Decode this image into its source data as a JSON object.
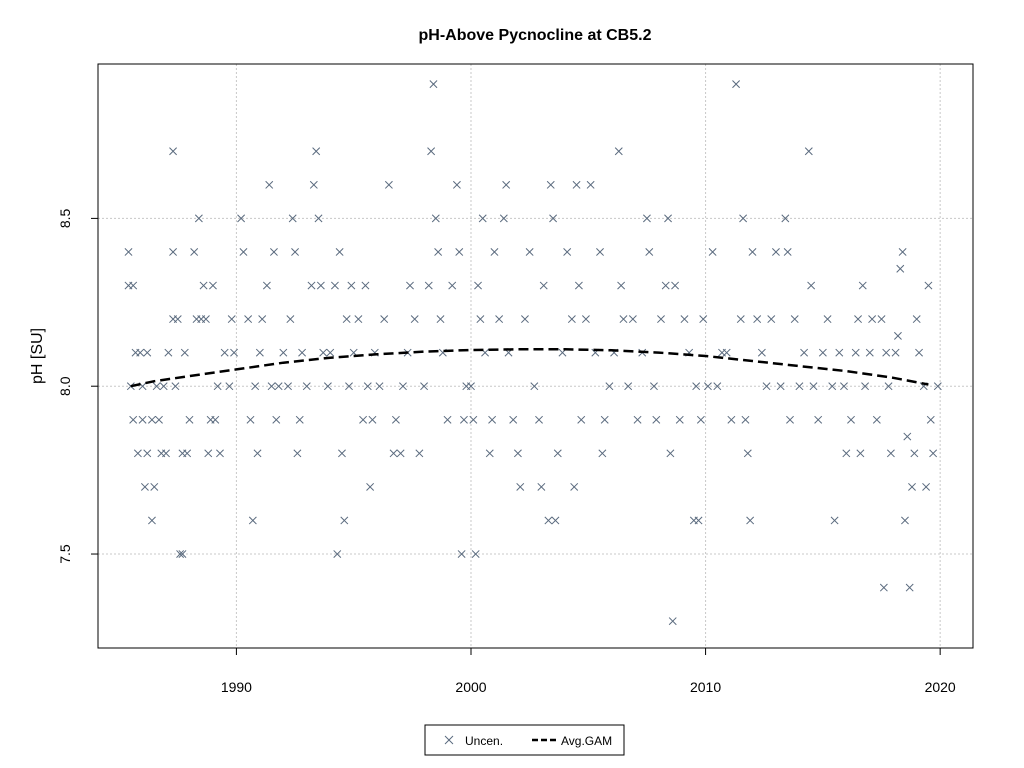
{
  "chart_data": {
    "type": "scatter",
    "title": "pH-Above Pycnocline at CB5.2",
    "xlabel": "",
    "ylabel": "pH [SU]",
    "xlim": [
      1984.1,
      2021.4
    ],
    "ylim": [
      7.22,
      8.96
    ],
    "x_ticks": [
      1990,
      2000,
      2010,
      2020
    ],
    "y_ticks": [
      7.5,
      8.0,
      8.5
    ],
    "x_tick_labels": [
      "1990",
      "2000",
      "2010",
      "2020"
    ],
    "y_tick_labels": [
      "7.5",
      "8.0",
      "8.5"
    ],
    "grid": true,
    "legend": {
      "position": "bottom",
      "entries": [
        "Uncen.",
        "Avg.GAM"
      ]
    },
    "colors": {
      "points": "#5a6a7e",
      "line": "#000000",
      "grid": "#c8c8c8"
    },
    "series": [
      {
        "name": "Uncen.",
        "marker": "x",
        "points": [
          [
            1985.4,
            8.4
          ],
          [
            1985.4,
            8.3
          ],
          [
            1985.6,
            8.3
          ],
          [
            1985.5,
            8.0
          ],
          [
            1985.6,
            7.9
          ],
          [
            1985.7,
            8.1
          ],
          [
            1985.8,
            7.8
          ],
          [
            1985.9,
            8.1
          ],
          [
            1986.0,
            8.0
          ],
          [
            1986.0,
            7.9
          ],
          [
            1986.1,
            7.7
          ],
          [
            1986.2,
            7.8
          ],
          [
            1986.2,
            8.1
          ],
          [
            1986.4,
            7.6
          ],
          [
            1986.4,
            7.9
          ],
          [
            1986.5,
            7.7
          ],
          [
            1986.6,
            8.0
          ],
          [
            1986.7,
            7.9
          ],
          [
            1986.8,
            7.8
          ],
          [
            1986.9,
            8.0
          ],
          [
            1987.0,
            7.8
          ],
          [
            1987.1,
            8.1
          ],
          [
            1987.3,
            8.7
          ],
          [
            1987.3,
            8.4
          ],
          [
            1987.3,
            8.2
          ],
          [
            1987.4,
            8.0
          ],
          [
            1987.5,
            8.2
          ],
          [
            1987.6,
            7.5
          ],
          [
            1987.7,
            7.5
          ],
          [
            1987.7,
            7.8
          ],
          [
            1987.8,
            8.1
          ],
          [
            1987.9,
            7.8
          ],
          [
            1988.0,
            7.9
          ],
          [
            1988.2,
            8.4
          ],
          [
            1988.3,
            8.2
          ],
          [
            1988.4,
            8.5
          ],
          [
            1988.5,
            8.2
          ],
          [
            1988.6,
            8.3
          ],
          [
            1988.7,
            8.2
          ],
          [
            1988.8,
            7.8
          ],
          [
            1988.9,
            7.9
          ],
          [
            1989.0,
            8.3
          ],
          [
            1989.1,
            7.9
          ],
          [
            1989.2,
            8.0
          ],
          [
            1989.3,
            7.8
          ],
          [
            1989.5,
            8.1
          ],
          [
            1989.7,
            8.0
          ],
          [
            1989.8,
            8.2
          ],
          [
            1989.9,
            8.1
          ],
          [
            1990.2,
            8.5
          ],
          [
            1990.3,
            8.4
          ],
          [
            1990.5,
            8.2
          ],
          [
            1990.6,
            7.9
          ],
          [
            1990.7,
            7.6
          ],
          [
            1990.8,
            8.0
          ],
          [
            1990.9,
            7.8
          ],
          [
            1991.0,
            8.1
          ],
          [
            1991.1,
            8.2
          ],
          [
            1991.3,
            8.3
          ],
          [
            1991.4,
            8.6
          ],
          [
            1991.5,
            8.0
          ],
          [
            1991.6,
            8.4
          ],
          [
            1991.7,
            7.9
          ],
          [
            1991.8,
            8.0
          ],
          [
            1992.0,
            8.1
          ],
          [
            1992.2,
            8.0
          ],
          [
            1992.3,
            8.2
          ],
          [
            1992.4,
            8.5
          ],
          [
            1992.5,
            8.4
          ],
          [
            1992.6,
            7.8
          ],
          [
            1992.7,
            7.9
          ],
          [
            1992.8,
            8.1
          ],
          [
            1993.0,
            8.0
          ],
          [
            1993.2,
            8.3
          ],
          [
            1993.3,
            8.6
          ],
          [
            1993.4,
            8.7
          ],
          [
            1993.5,
            8.5
          ],
          [
            1993.6,
            8.3
          ],
          [
            1993.7,
            8.1
          ],
          [
            1993.9,
            8.0
          ],
          [
            1994.0,
            8.1
          ],
          [
            1994.2,
            8.3
          ],
          [
            1994.3,
            7.5
          ],
          [
            1994.4,
            8.4
          ],
          [
            1994.5,
            7.8
          ],
          [
            1994.6,
            7.6
          ],
          [
            1994.7,
            8.2
          ],
          [
            1994.8,
            8.0
          ],
          [
            1994.9,
            8.3
          ],
          [
            1995.0,
            8.1
          ],
          [
            1995.2,
            8.2
          ],
          [
            1995.4,
            7.9
          ],
          [
            1995.5,
            8.3
          ],
          [
            1995.6,
            8.0
          ],
          [
            1995.7,
            7.7
          ],
          [
            1995.8,
            7.9
          ],
          [
            1995.9,
            8.1
          ],
          [
            1996.1,
            8.0
          ],
          [
            1996.3,
            8.2
          ],
          [
            1996.5,
            8.6
          ],
          [
            1996.7,
            7.8
          ],
          [
            1996.8,
            7.9
          ],
          [
            1997.0,
            7.8
          ],
          [
            1997.1,
            8.0
          ],
          [
            1997.3,
            8.1
          ],
          [
            1997.4,
            8.3
          ],
          [
            1997.6,
            8.2
          ],
          [
            1997.8,
            7.8
          ],
          [
            1998.0,
            8.0
          ],
          [
            1998.2,
            8.3
          ],
          [
            1998.3,
            8.7
          ],
          [
            1998.4,
            8.9
          ],
          [
            1998.5,
            8.5
          ],
          [
            1998.6,
            8.4
          ],
          [
            1998.7,
            8.2
          ],
          [
            1998.8,
            8.1
          ],
          [
            1999.0,
            7.9
          ],
          [
            1999.2,
            8.3
          ],
          [
            1999.4,
            8.6
          ],
          [
            1999.5,
            8.4
          ],
          [
            1999.6,
            7.5
          ],
          [
            1999.7,
            7.9
          ],
          [
            1999.8,
            8.0
          ],
          [
            2000.0,
            8.0
          ],
          [
            2000.1,
            7.9
          ],
          [
            2000.2,
            7.5
          ],
          [
            2000.3,
            8.3
          ],
          [
            2000.4,
            8.2
          ],
          [
            2000.5,
            8.5
          ],
          [
            2000.6,
            8.1
          ],
          [
            2000.8,
            7.8
          ],
          [
            2000.9,
            7.9
          ],
          [
            2001.0,
            8.4
          ],
          [
            2001.2,
            8.2
          ],
          [
            2001.4,
            8.5
          ],
          [
            2001.5,
            8.6
          ],
          [
            2001.6,
            8.1
          ],
          [
            2001.8,
            7.9
          ],
          [
            2002.0,
            7.8
          ],
          [
            2002.1,
            7.7
          ],
          [
            2002.3,
            8.2
          ],
          [
            2002.5,
            8.4
          ],
          [
            2002.7,
            8.0
          ],
          [
            2002.9,
            7.9
          ],
          [
            2003.0,
            7.7
          ],
          [
            2003.1,
            8.3
          ],
          [
            2003.3,
            7.6
          ],
          [
            2003.4,
            8.6
          ],
          [
            2003.5,
            8.5
          ],
          [
            2003.6,
            7.6
          ],
          [
            2003.7,
            7.8
          ],
          [
            2003.9,
            8.1
          ],
          [
            2004.1,
            8.4
          ],
          [
            2004.3,
            8.2
          ],
          [
            2004.4,
            7.7
          ],
          [
            2004.5,
            8.6
          ],
          [
            2004.6,
            8.3
          ],
          [
            2004.7,
            7.9
          ],
          [
            2004.9,
            8.2
          ],
          [
            2005.1,
            8.6
          ],
          [
            2005.3,
            8.1
          ],
          [
            2005.5,
            8.4
          ],
          [
            2005.6,
            7.8
          ],
          [
            2005.7,
            7.9
          ],
          [
            2005.9,
            8.0
          ],
          [
            2006.1,
            8.1
          ],
          [
            2006.3,
            8.7
          ],
          [
            2006.4,
            8.3
          ],
          [
            2006.5,
            8.2
          ],
          [
            2006.7,
            8.0
          ],
          [
            2006.9,
            8.2
          ],
          [
            2007.1,
            7.9
          ],
          [
            2007.3,
            8.1
          ],
          [
            2007.5,
            8.5
          ],
          [
            2007.6,
            8.4
          ],
          [
            2007.8,
            8.0
          ],
          [
            2007.9,
            7.9
          ],
          [
            2008.1,
            8.2
          ],
          [
            2008.3,
            8.3
          ],
          [
            2008.4,
            8.5
          ],
          [
            2008.5,
            7.8
          ],
          [
            2008.6,
            7.3
          ],
          [
            2008.7,
            8.3
          ],
          [
            2008.9,
            7.9
          ],
          [
            2009.1,
            8.2
          ],
          [
            2009.3,
            8.1
          ],
          [
            2009.5,
            7.6
          ],
          [
            2009.6,
            8.0
          ],
          [
            2009.7,
            7.6
          ],
          [
            2009.8,
            7.9
          ],
          [
            2009.9,
            8.2
          ],
          [
            2010.1,
            8.0
          ],
          [
            2010.3,
            8.4
          ],
          [
            2010.5,
            8.0
          ],
          [
            2010.7,
            8.1
          ],
          [
            2010.9,
            8.1
          ],
          [
            2011.1,
            7.9
          ],
          [
            2011.3,
            8.9
          ],
          [
            2011.5,
            8.2
          ],
          [
            2011.6,
            8.5
          ],
          [
            2011.7,
            7.9
          ],
          [
            2011.8,
            7.8
          ],
          [
            2011.9,
            7.6
          ],
          [
            2012.0,
            8.4
          ],
          [
            2012.2,
            8.2
          ],
          [
            2012.4,
            8.1
          ],
          [
            2012.6,
            8.0
          ],
          [
            2012.8,
            8.2
          ],
          [
            2013.0,
            8.4
          ],
          [
            2013.2,
            8.0
          ],
          [
            2013.4,
            8.5
          ],
          [
            2013.5,
            8.4
          ],
          [
            2013.6,
            7.9
          ],
          [
            2013.8,
            8.2
          ],
          [
            2014.0,
            8.0
          ],
          [
            2014.2,
            8.1
          ],
          [
            2014.4,
            8.7
          ],
          [
            2014.5,
            8.3
          ],
          [
            2014.6,
            8.0
          ],
          [
            2014.8,
            7.9
          ],
          [
            2015.0,
            8.1
          ],
          [
            2015.2,
            8.2
          ],
          [
            2015.4,
            8.0
          ],
          [
            2015.5,
            7.6
          ],
          [
            2015.7,
            8.1
          ],
          [
            2015.9,
            8.0
          ],
          [
            2016.0,
            7.8
          ],
          [
            2016.2,
            7.9
          ],
          [
            2016.4,
            8.1
          ],
          [
            2016.5,
            8.2
          ],
          [
            2016.6,
            7.8
          ],
          [
            2016.7,
            8.3
          ],
          [
            2016.8,
            8.0
          ],
          [
            2017.0,
            8.1
          ],
          [
            2017.1,
            8.2
          ],
          [
            2017.3,
            7.9
          ],
          [
            2017.5,
            8.2
          ],
          [
            2017.6,
            7.4
          ],
          [
            2017.7,
            8.1
          ],
          [
            2017.8,
            8.0
          ],
          [
            2017.9,
            7.8
          ],
          [
            2018.1,
            8.1
          ],
          [
            2018.2,
            8.15
          ],
          [
            2018.3,
            8.35
          ],
          [
            2018.4,
            8.4
          ],
          [
            2018.5,
            7.6
          ],
          [
            2018.6,
            7.85
          ],
          [
            2018.7,
            7.4
          ],
          [
            2018.8,
            7.7
          ],
          [
            2018.9,
            7.8
          ],
          [
            2019.0,
            8.2
          ],
          [
            2019.1,
            8.1
          ],
          [
            2019.3,
            8.0
          ],
          [
            2019.4,
            7.7
          ],
          [
            2019.5,
            8.3
          ],
          [
            2019.6,
            7.9
          ],
          [
            2019.7,
            7.8
          ],
          [
            2019.9,
            8.0
          ]
        ]
      },
      {
        "name": "Avg.GAM",
        "style": "dashed",
        "points": [
          [
            1985.5,
            8.0
          ],
          [
            1986.5,
            8.015
          ],
          [
            1988.0,
            8.03
          ],
          [
            1990.0,
            8.05
          ],
          [
            1992.0,
            8.07
          ],
          [
            1994.0,
            8.085
          ],
          [
            1996.0,
            8.095
          ],
          [
            1998.0,
            8.103
          ],
          [
            2000.0,
            8.108
          ],
          [
            2002.0,
            8.11
          ],
          [
            2004.0,
            8.11
          ],
          [
            2006.0,
            8.107
          ],
          [
            2008.0,
            8.1
          ],
          [
            2010.0,
            8.09
          ],
          [
            2012.0,
            8.075
          ],
          [
            2014.0,
            8.06
          ],
          [
            2016.0,
            8.045
          ],
          [
            2018.0,
            8.025
          ],
          [
            2019.5,
            8.005
          ]
        ]
      }
    ]
  }
}
